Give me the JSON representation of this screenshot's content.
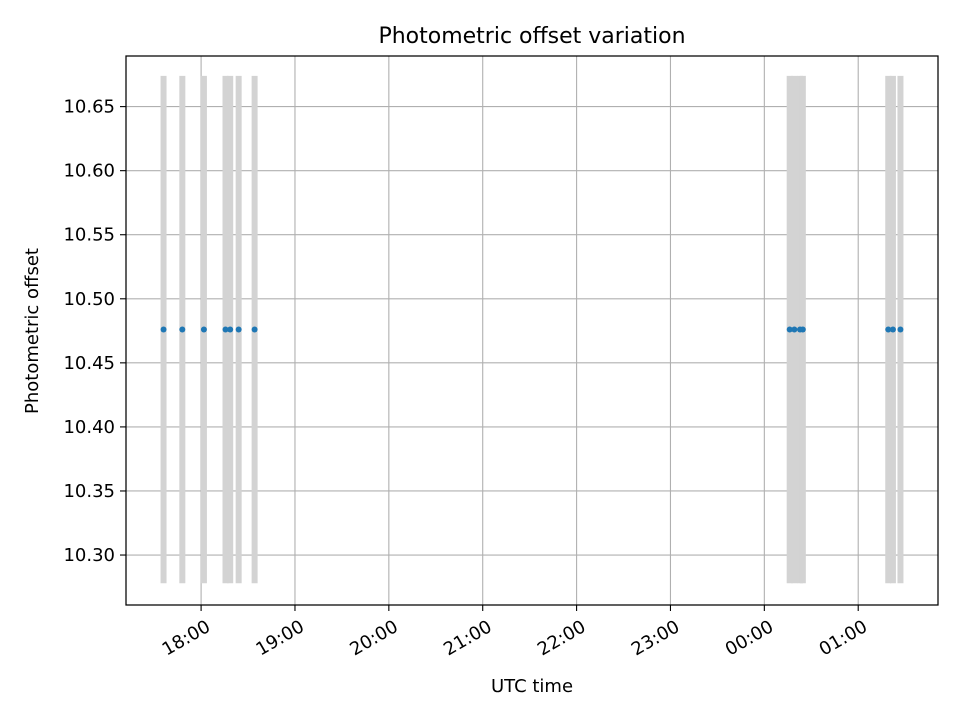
{
  "chart_data": {
    "type": "scatter",
    "title": "Photometric offset variation",
    "xlabel": "UTC time",
    "ylabel": "Photometric offset",
    "x_ticks": [
      "18:00",
      "19:00",
      "20:00",
      "21:00",
      "22:00",
      "23:00",
      "00:00",
      "01:00"
    ],
    "x_tick_hours": [
      18,
      19,
      20,
      21,
      22,
      23,
      24,
      25
    ],
    "y_ticks": [
      "10.30",
      "10.35",
      "10.40",
      "10.45",
      "10.50",
      "10.55",
      "10.60",
      "10.65"
    ],
    "y_tick_values": [
      10.3,
      10.35,
      10.4,
      10.45,
      10.5,
      10.55,
      10.6,
      10.65
    ],
    "xlim_hours": [
      17.2,
      25.85
    ],
    "ylim": [
      10.261,
      10.6895
    ],
    "grid": true,
    "marker_color": "#1f77b4",
    "errorbar_color": "#d3d3d3",
    "points": [
      {
        "t_hours": 17.6,
        "y": 10.476,
        "yerr": 0.198
      },
      {
        "t_hours": 17.8,
        "y": 10.476,
        "yerr": 0.198
      },
      {
        "t_hours": 18.03,
        "y": 10.476,
        "yerr": 0.198
      },
      {
        "t_hours": 18.26,
        "y": 10.476,
        "yerr": 0.198
      },
      {
        "t_hours": 18.31,
        "y": 10.476,
        "yerr": 0.198
      },
      {
        "t_hours": 18.4,
        "y": 10.476,
        "yerr": 0.198
      },
      {
        "t_hours": 18.57,
        "y": 10.476,
        "yerr": 0.198
      },
      {
        "t_hours": 24.27,
        "y": 10.476,
        "yerr": 0.198
      },
      {
        "t_hours": 24.32,
        "y": 10.476,
        "yerr": 0.198
      },
      {
        "t_hours": 24.38,
        "y": 10.476,
        "yerr": 0.198
      },
      {
        "t_hours": 24.41,
        "y": 10.476,
        "yerr": 0.198
      },
      {
        "t_hours": 25.32,
        "y": 10.476,
        "yerr": 0.198
      },
      {
        "t_hours": 25.37,
        "y": 10.476,
        "yerr": 0.198
      },
      {
        "t_hours": 25.45,
        "y": 10.476,
        "yerr": 0.198
      }
    ]
  }
}
